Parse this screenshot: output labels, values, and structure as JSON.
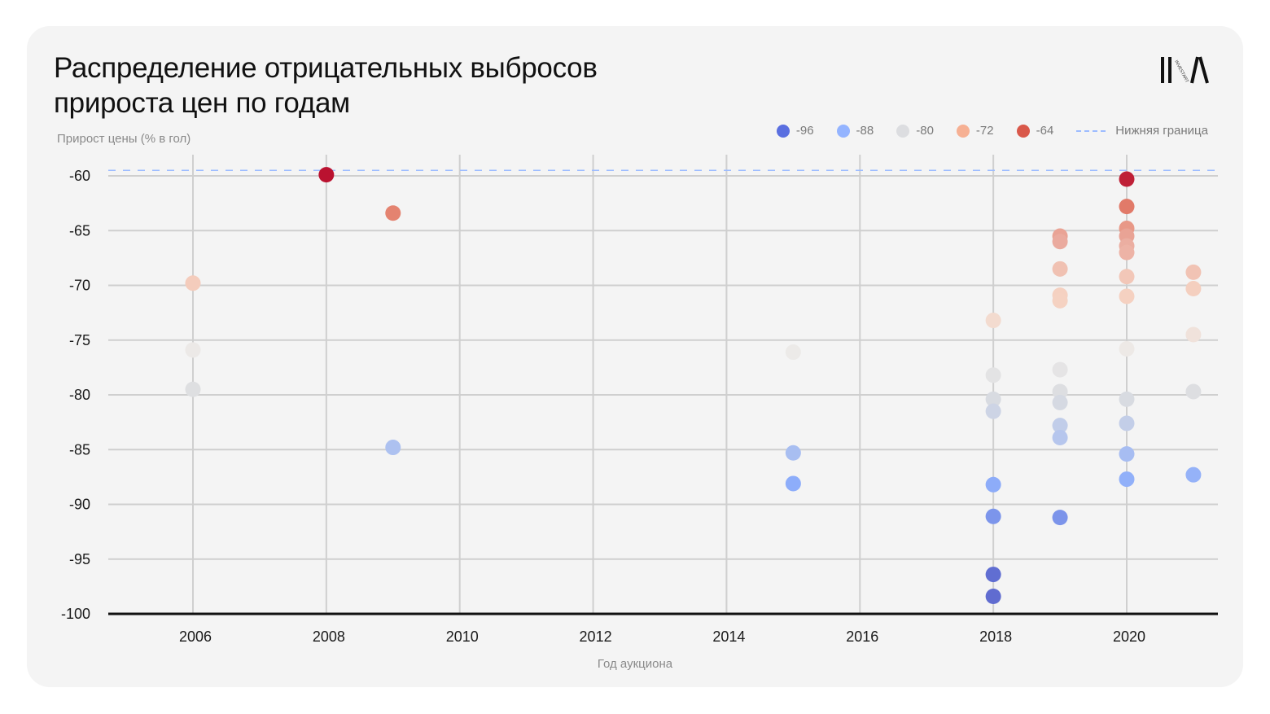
{
  "header": {
    "title_lines": [
      "Распределение отрицательных выбросов",
      "прироста цен по годам"
    ],
    "logo_text": "INVESTART"
  },
  "legend": {
    "items": [
      {
        "label": "-96",
        "color": "#5a6fe0"
      },
      {
        "label": "-88",
        "color": "#94b4ff"
      },
      {
        "label": "-80",
        "color": "#dcdde0"
      },
      {
        "label": "-72",
        "color": "#f6b093"
      },
      {
        "label": "-64",
        "color": "#d9584a"
      }
    ],
    "threshold_label": "Нижняя граница"
  },
  "chart_data": {
    "type": "scatter",
    "title": "Распределение отрицательных выбросов прироста цен по годам",
    "xlabel": "Год аукциона",
    "ylabel": "Прирост цены (% в гол)",
    "xlim": [
      2004.7,
      2021.35
    ],
    "ylim": [
      -100,
      -60
    ],
    "x_ticks": [
      2006,
      2008,
      2010,
      2012,
      2014,
      2016,
      2018,
      2020
    ],
    "y_ticks": [
      -60,
      -65,
      -70,
      -75,
      -80,
      -85,
      -90,
      -95,
      -100
    ],
    "grid": true,
    "legend_position": "top-right",
    "color_scale": {
      "type": "diverging coolwarm",
      "stops": [
        -96,
        -88,
        -80,
        -72,
        -64
      ]
    },
    "threshold_line": {
      "label": "Нижняя граница",
      "y": -59.5,
      "style": "dashed",
      "color": "#9dbcff"
    },
    "points": [
      {
        "x": 2006,
        "y": -69.8
      },
      {
        "x": 2006,
        "y": -75.9
      },
      {
        "x": 2006,
        "y": -79.5
      },
      {
        "x": 2008,
        "y": -59.9
      },
      {
        "x": 2009,
        "y": -63.4
      },
      {
        "x": 2009,
        "y": -84.8
      },
      {
        "x": 2015,
        "y": -76.1
      },
      {
        "x": 2015,
        "y": -85.3
      },
      {
        "x": 2015,
        "y": -88.1
      },
      {
        "x": 2018,
        "y": -73.2
      },
      {
        "x": 2018,
        "y": -78.2
      },
      {
        "x": 2018,
        "y": -80.4
      },
      {
        "x": 2018,
        "y": -81.5
      },
      {
        "x": 2018,
        "y": -88.2
      },
      {
        "x": 2018,
        "y": -91.1
      },
      {
        "x": 2018,
        "y": -96.4
      },
      {
        "x": 2018,
        "y": -98.4
      },
      {
        "x": 2019,
        "y": -65.5
      },
      {
        "x": 2019,
        "y": -66.0
      },
      {
        "x": 2019,
        "y": -68.5
      },
      {
        "x": 2019,
        "y": -70.9
      },
      {
        "x": 2019,
        "y": -71.4
      },
      {
        "x": 2019,
        "y": -77.7
      },
      {
        "x": 2019,
        "y": -79.7
      },
      {
        "x": 2019,
        "y": -80.7
      },
      {
        "x": 2019,
        "y": -82.8
      },
      {
        "x": 2019,
        "y": -83.9
      },
      {
        "x": 2019,
        "y": -91.2
      },
      {
        "x": 2020,
        "y": -60.3
      },
      {
        "x": 2020,
        "y": -62.8
      },
      {
        "x": 2020,
        "y": -64.8
      },
      {
        "x": 2020,
        "y": -65.5
      },
      {
        "x": 2020,
        "y": -66.4
      },
      {
        "x": 2020,
        "y": -67.0
      },
      {
        "x": 2020,
        "y": -69.2
      },
      {
        "x": 2020,
        "y": -71.0
      },
      {
        "x": 2020,
        "y": -75.8
      },
      {
        "x": 2020,
        "y": -80.4
      },
      {
        "x": 2020,
        "y": -82.6
      },
      {
        "x": 2020,
        "y": -85.4
      },
      {
        "x": 2020,
        "y": -87.7
      },
      {
        "x": 2021,
        "y": -68.8
      },
      {
        "x": 2021,
        "y": -70.3
      },
      {
        "x": 2021,
        "y": -74.5
      },
      {
        "x": 2021,
        "y": -79.7
      },
      {
        "x": 2021,
        "y": -87.3
      }
    ]
  }
}
